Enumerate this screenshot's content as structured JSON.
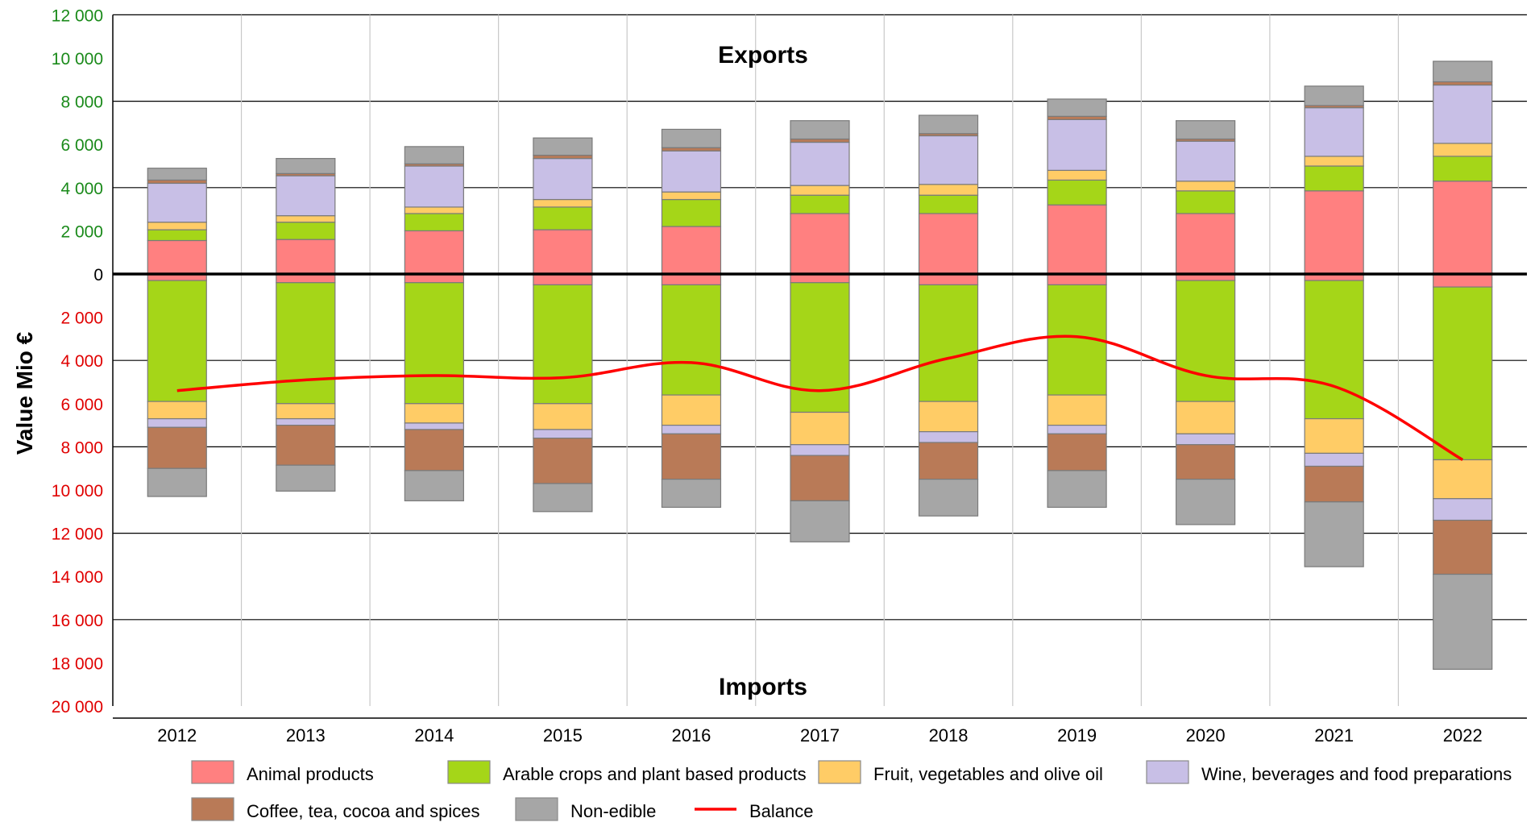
{
  "chart_data": {
    "type": "bar",
    "stacked": true,
    "ylabel": "Value Mio €",
    "annotations": {
      "top": "Exports",
      "bottom": "Imports"
    },
    "categories": [
      "2012",
      "2013",
      "2014",
      "2015",
      "2016",
      "2017",
      "2018",
      "2019",
      "2020",
      "2021",
      "2022"
    ],
    "yticks": {
      "exports": [
        "12 000",
        "10 000",
        "8 000",
        "6 000",
        "4 000",
        "2 000"
      ],
      "zero": "0",
      "imports": [
        "2 000",
        "4 000",
        "6 000",
        "8 000",
        "10 000",
        "12 000",
        "14 000",
        "16 000",
        "18 000",
        "20 000"
      ]
    },
    "ylim": [
      -20000,
      12000
    ],
    "grid": true,
    "legend_position": "bottom",
    "colors": {
      "animal": "#ff8080",
      "arable": "#a5d618",
      "fruit": "#ffcc66",
      "wine": "#c8bfe6",
      "coffee": "#b97a57",
      "nonedible": "#a6a6a6",
      "balance": "#ff0000"
    },
    "legend": [
      {
        "key": "animal",
        "label": "Animal products"
      },
      {
        "key": "arable",
        "label": "Arable crops and plant based products"
      },
      {
        "key": "fruit",
        "label": "Fruit, vegetables and olive oil"
      },
      {
        "key": "wine",
        "label": "Wine, beverages and food preparations"
      },
      {
        "key": "coffee",
        "label": "Coffee, tea, cocoa and spices"
      },
      {
        "key": "nonedible",
        "label": "Non-edible"
      },
      {
        "key": "balance",
        "label": "Balance"
      }
    ],
    "exports": [
      {
        "key": "animal",
        "values": [
          1550,
          1600,
          2000,
          2050,
          2200,
          2800,
          2800,
          3200,
          2800,
          3850,
          4300
        ]
      },
      {
        "key": "arable",
        "values": [
          500,
          800,
          800,
          1050,
          1250,
          850,
          850,
          1150,
          1050,
          1150,
          1150
        ]
      },
      {
        "key": "fruit",
        "values": [
          350,
          300,
          300,
          350,
          350,
          450,
          500,
          450,
          450,
          450,
          600
        ]
      },
      {
        "key": "wine",
        "values": [
          1800,
          1850,
          1900,
          1900,
          1900,
          2000,
          2250,
          2350,
          1850,
          2250,
          2700
        ]
      },
      {
        "key": "coffee",
        "values": [
          150,
          100,
          100,
          150,
          150,
          150,
          100,
          150,
          100,
          100,
          150
        ]
      },
      {
        "key": "nonedible",
        "values": [
          550,
          700,
          800,
          800,
          850,
          850,
          850,
          800,
          850,
          900,
          950
        ]
      }
    ],
    "imports": [
      {
        "key": "animal",
        "values": [
          300,
          400,
          400,
          500,
          500,
          400,
          500,
          500,
          300,
          300,
          600
        ]
      },
      {
        "key": "arable",
        "values": [
          5600,
          5600,
          5600,
          5500,
          5100,
          6000,
          5400,
          5100,
          5600,
          6400,
          8000
        ]
      },
      {
        "key": "fruit",
        "values": [
          800,
          700,
          900,
          1200,
          1400,
          1500,
          1400,
          1400,
          1500,
          1600,
          1800
        ]
      },
      {
        "key": "wine",
        "values": [
          400,
          300,
          300,
          400,
          400,
          500,
          500,
          400,
          500,
          600,
          1000
        ]
      },
      {
        "key": "coffee",
        "values": [
          1900,
          1850,
          1900,
          2100,
          2100,
          2100,
          1700,
          1700,
          1600,
          1650,
          2500
        ]
      },
      {
        "key": "nonedible",
        "values": [
          1300,
          1200,
          1400,
          1300,
          1300,
          1900,
          1700,
          1700,
          2100,
          3000,
          4400
        ]
      }
    ],
    "balance": [
      -5400,
      -4900,
      -4700,
      -4800,
      -4100,
      -5400,
      -3900,
      -2900,
      -4700,
      -5200,
      -8600
    ]
  }
}
